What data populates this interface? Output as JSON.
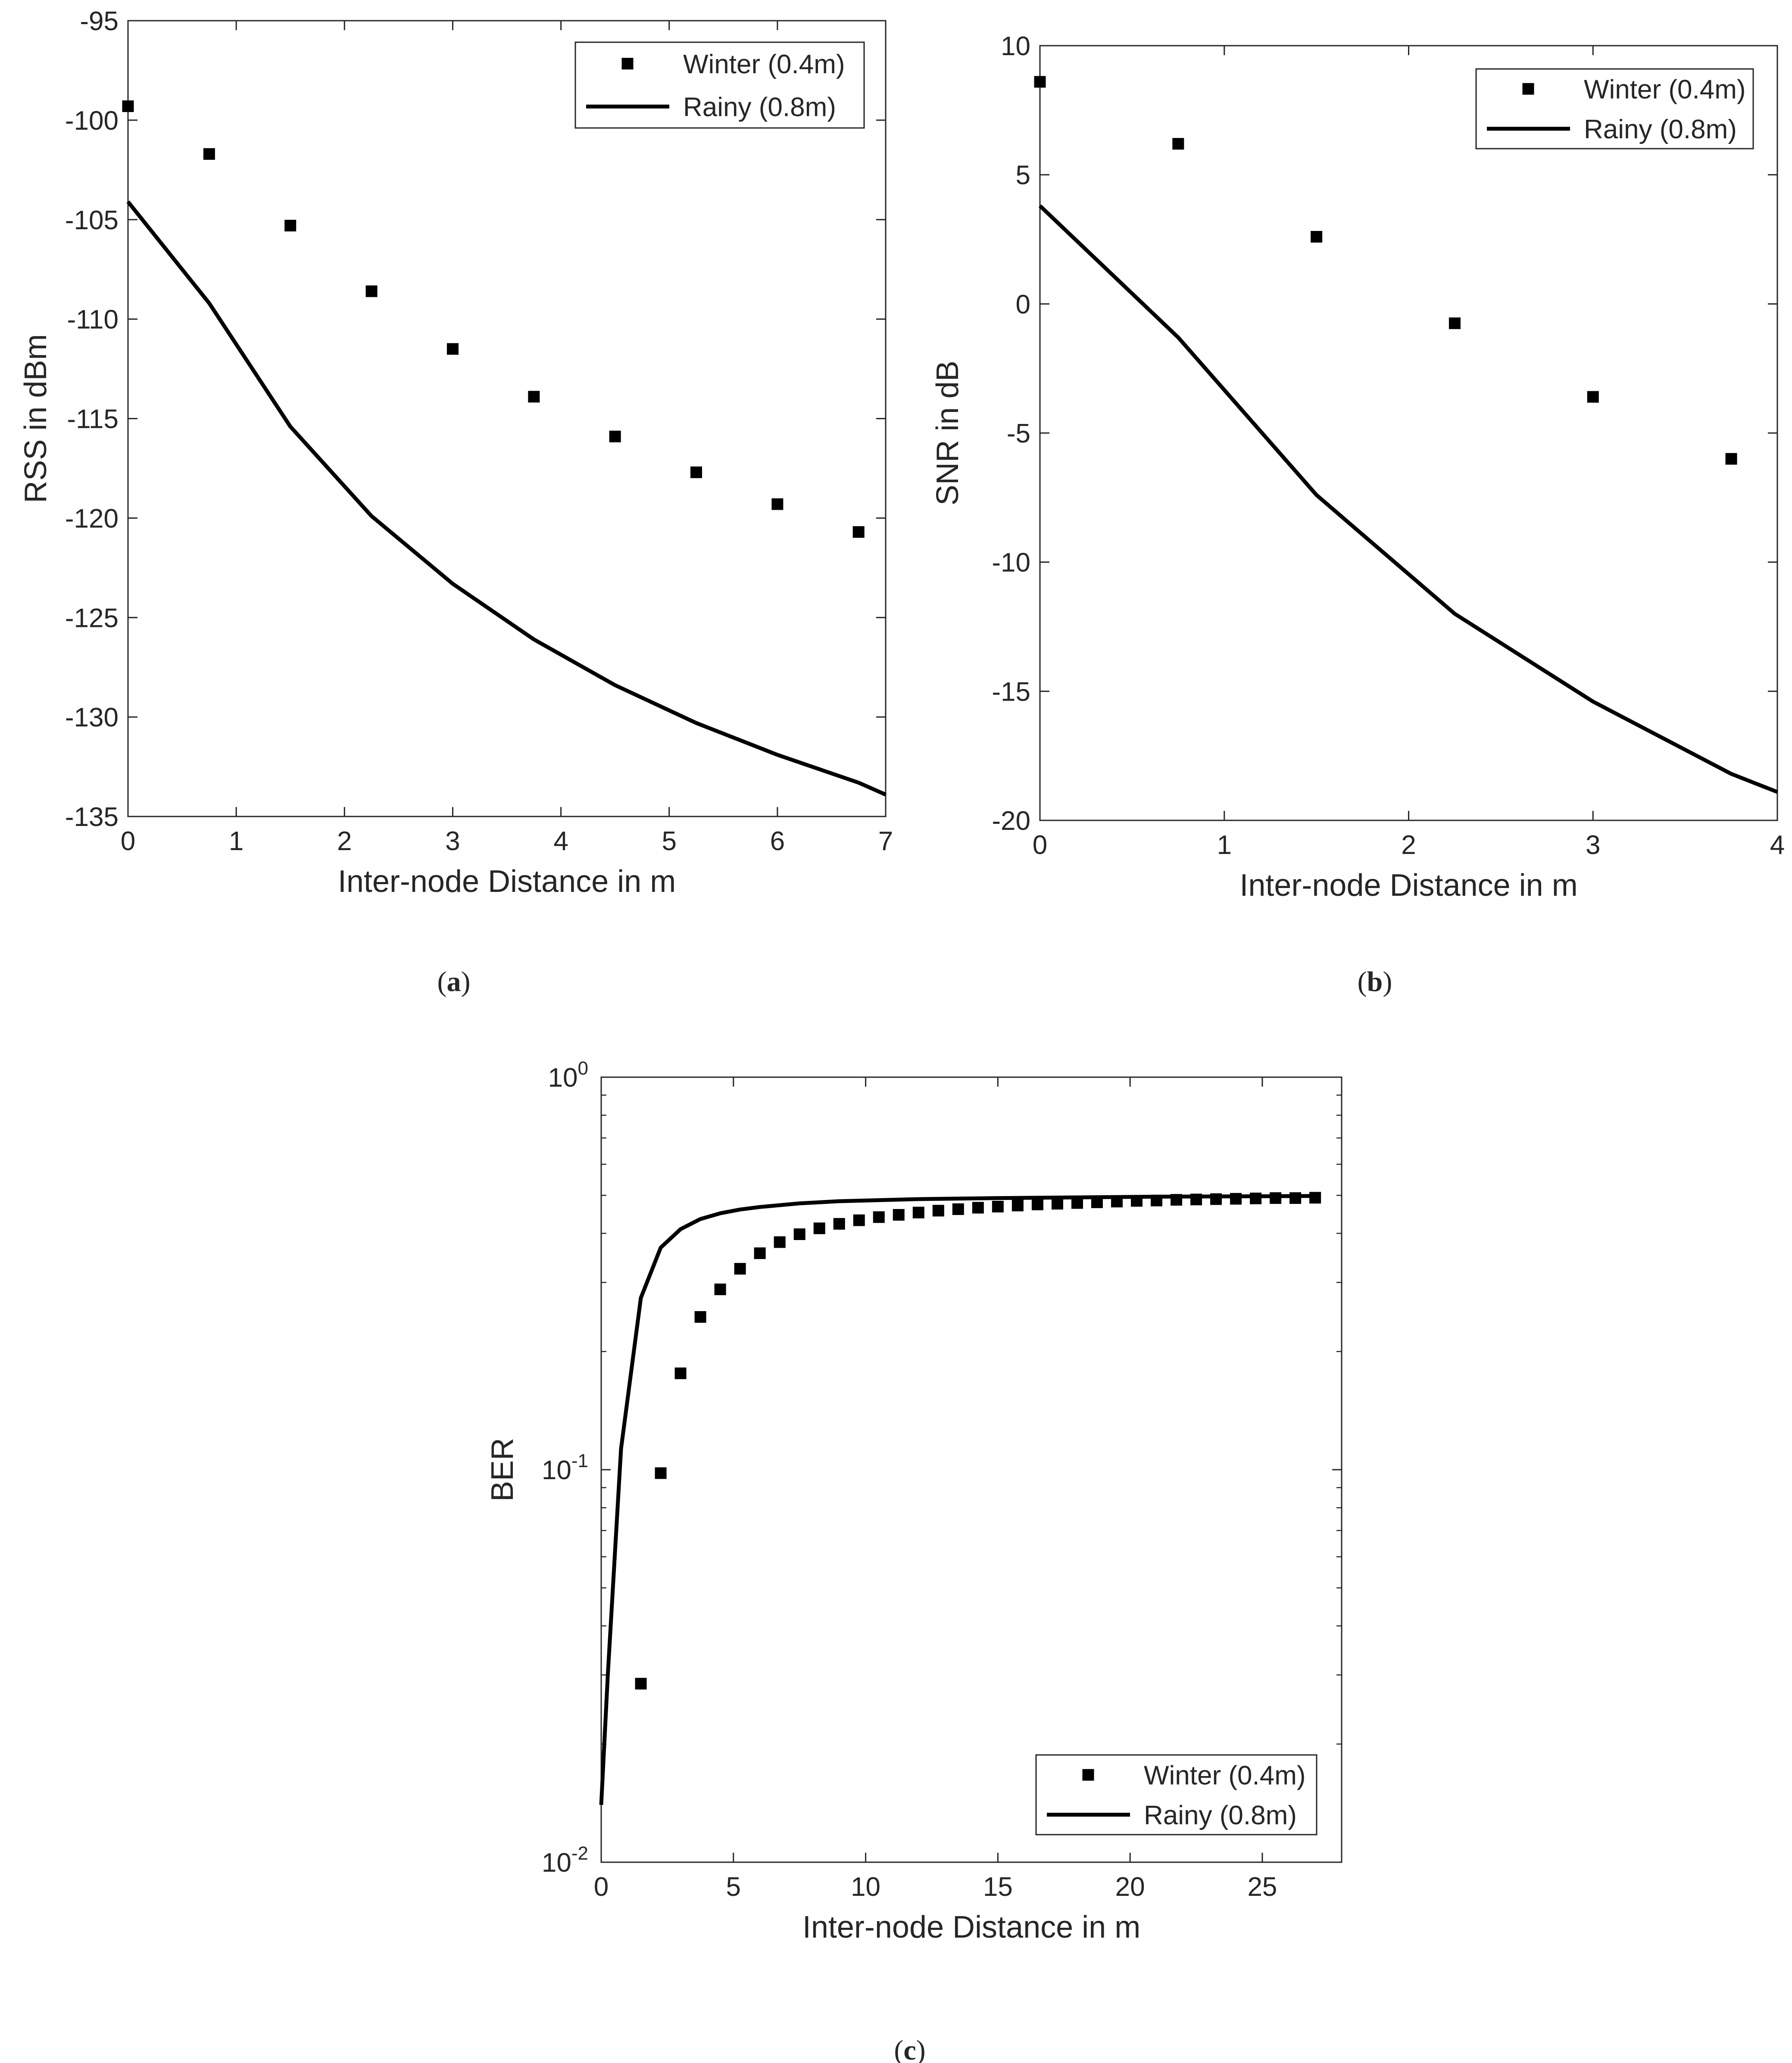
{
  "chart_data": [
    {
      "id": "a",
      "type": "line",
      "caption_letter": "a",
      "xlabel": "Inter-node Distance in m",
      "ylabel": "RSS in dBm",
      "scale": "linear",
      "xlim": [
        0,
        7
      ],
      "ylim": [
        -135,
        -95
      ],
      "xticks": [
        0,
        1,
        2,
        3,
        4,
        5,
        6,
        7
      ],
      "yticks": [
        -135,
        -130,
        -125,
        -120,
        -115,
        -110,
        -105,
        -100,
        -95
      ],
      "grid": false,
      "legend_position": "top-right",
      "series": [
        {
          "name": "Winter (0.4m)",
          "style": "markers",
          "x": [
            0,
            0.75,
            1.5,
            2.25,
            3.0,
            3.75,
            4.5,
            5.25,
            6.0,
            6.75
          ],
          "y": [
            -99.3,
            -101.7,
            -105.3,
            -108.6,
            -111.5,
            -113.9,
            -115.9,
            -117.7,
            -119.3,
            -120.7
          ]
        },
        {
          "name": "Rainy (0.8m)",
          "style": "line",
          "x": [
            0,
            0.75,
            1.5,
            2.25,
            3.0,
            3.75,
            4.5,
            5.25,
            6.0,
            6.75,
            7.0
          ],
          "y": [
            -104.1,
            -109.2,
            -115.4,
            -119.9,
            -123.3,
            -126.1,
            -128.4,
            -130.3,
            -131.9,
            -133.3,
            -133.9
          ]
        }
      ]
    },
    {
      "id": "b",
      "type": "line",
      "caption_letter": "b",
      "xlabel": "Inter-node Distance in m",
      "ylabel": "SNR in dB",
      "scale": "linear",
      "xlim": [
        0,
        4
      ],
      "ylim": [
        -20,
        10
      ],
      "xticks": [
        0,
        1,
        2,
        3,
        4
      ],
      "yticks": [
        -20,
        -15,
        -10,
        -5,
        0,
        5,
        10
      ],
      "grid": false,
      "legend_position": "top-right",
      "series": [
        {
          "name": "Winter (0.4m)",
          "style": "markers",
          "x": [
            0,
            0.75,
            1.5,
            2.25,
            3.0,
            3.75
          ],
          "y": [
            8.6,
            6.2,
            2.6,
            -0.75,
            -3.6,
            -6.0
          ]
        },
        {
          "name": "Rainy (0.8m)",
          "style": "line",
          "x": [
            0,
            0.75,
            1.5,
            2.25,
            3.0,
            3.75,
            4.0
          ],
          "y": [
            3.8,
            -1.3,
            -7.4,
            -12.0,
            -15.4,
            -18.2,
            -18.9
          ]
        }
      ]
    },
    {
      "id": "c",
      "type": "line",
      "caption_letter": "c",
      "xlabel": "Inter-node Distance in m",
      "ylabel": "BER",
      "scale": "log",
      "xlim": [
        0,
        28
      ],
      "ylim": [
        0.01,
        1
      ],
      "xticks": [
        0,
        5,
        10,
        15,
        20,
        25
      ],
      "yticks": [
        0.01,
        0.1,
        1
      ],
      "ytick_labels": [
        {
          "base": "10",
          "exp": "-2"
        },
        {
          "base": "10",
          "exp": "-1"
        },
        {
          "base": "10",
          "exp": "0"
        }
      ],
      "grid": false,
      "legend_position": "bottom-right",
      "series": [
        {
          "name": "Winter (0.4m)",
          "style": "markers",
          "x": [
            1.5,
            2.25,
            3.0,
            3.75,
            4.5,
            5.25,
            6.0,
            6.75,
            7.5,
            8.25,
            9.0,
            9.75,
            10.5,
            11.25,
            12.0,
            12.75,
            13.5,
            14.25,
            15.0,
            15.75,
            16.5,
            17.25,
            18.0,
            18.75,
            19.5,
            20.25,
            21.0,
            21.75,
            22.5,
            23.25,
            24.0,
            24.75,
            25.5,
            26.25,
            27.0
          ],
          "y": [
            0.0285,
            0.098,
            0.176,
            0.245,
            0.288,
            0.325,
            0.356,
            0.38,
            0.398,
            0.412,
            0.423,
            0.432,
            0.44,
            0.446,
            0.452,
            0.457,
            0.461,
            0.465,
            0.468,
            0.471,
            0.474,
            0.476,
            0.478,
            0.48,
            0.482,
            0.484,
            0.485,
            0.487,
            0.488,
            0.489,
            0.49,
            0.491,
            0.492,
            0.492,
            0.493
          ]
        },
        {
          "name": "Rainy (0.8m)",
          "style": "line",
          "x": [
            0,
            0.25,
            0.75,
            1.5,
            2.25,
            3.0,
            3.75,
            4.5,
            5.25,
            6.0,
            7.5,
            9.0,
            12.0,
            15.0,
            18.0,
            21.0,
            24.0,
            27.0
          ],
          "y": [
            0.014,
            0.03,
            0.113,
            0.274,
            0.368,
            0.41,
            0.435,
            0.45,
            0.46,
            0.467,
            0.477,
            0.483,
            0.489,
            0.492,
            0.494,
            0.496,
            0.497,
            0.498
          ]
        }
      ]
    }
  ]
}
